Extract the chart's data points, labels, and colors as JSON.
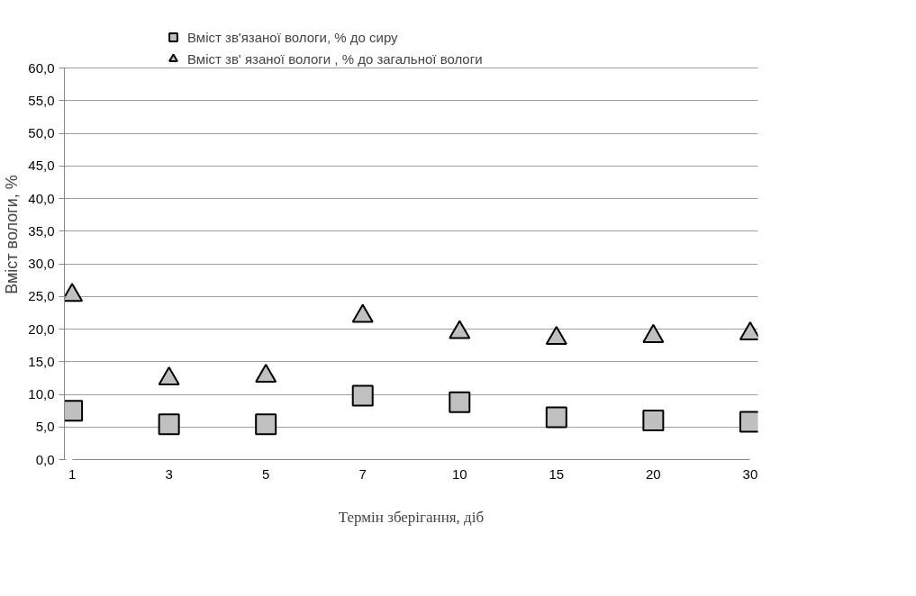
{
  "chart_data": {
    "type": "scatter",
    "xlabel": "Термін зберігання, діб",
    "ylabel": "Вміст вологи, %",
    "categories": [
      "1",
      "3",
      "5",
      "7",
      "10",
      "15",
      "20",
      "30"
    ],
    "series": [
      {
        "name": "Вміст зв'язаної вологи, % до сиру",
        "color": "#c0c0c0",
        "marker": "square",
        "values": [
          7.5,
          5.4,
          5.4,
          9.8,
          8.8,
          6.5,
          6.0,
          5.8
        ]
      },
      {
        "name": "Вміст зв' язаної вологи , % до загальної вологи",
        "color": "#c0c0c0",
        "marker": "triangle",
        "values": [
          25.2,
          12.4,
          12.8,
          22.0,
          19.5,
          18.6,
          18.9,
          19.3
        ]
      }
    ],
    "ylim": [
      0,
      60
    ],
    "yticks": [
      {
        "value": 0,
        "label": "0,0"
      },
      {
        "value": 5,
        "label": "5,0"
      },
      {
        "value": 10,
        "label": "10,0"
      },
      {
        "value": 15,
        "label": "15,0"
      },
      {
        "value": 20,
        "label": "20,0"
      },
      {
        "value": 25,
        "label": "25,0"
      },
      {
        "value": 30,
        "label": "30,0"
      },
      {
        "value": 35,
        "label": "35,0"
      },
      {
        "value": 40,
        "label": "40,0"
      },
      {
        "value": 45,
        "label": "45,0"
      },
      {
        "value": 50,
        "label": "50,0"
      },
      {
        "value": 55,
        "label": "55,0"
      },
      {
        "value": 60,
        "label": "60,0"
      }
    ],
    "grid": "y",
    "legend": "top"
  }
}
